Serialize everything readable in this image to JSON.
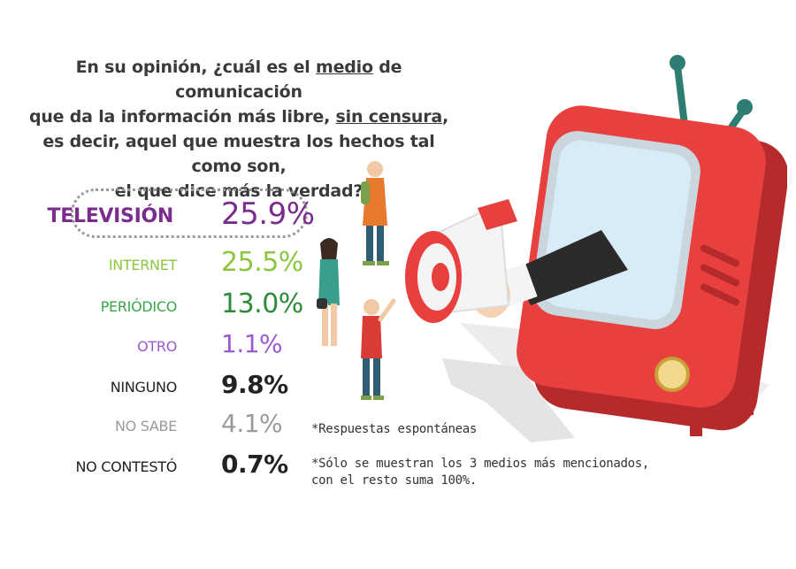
{
  "question": {
    "line1_pre": "En su opinión, ¿cuál es el ",
    "line1_u": "medio",
    "line1_post": " de comunicación",
    "line2_pre": "que da la información más libre, ",
    "line2_u": "sin censura",
    "line2_post": ",",
    "line3": "es decir, aquel que muestra los hechos tal como son,",
    "line4": "el que dice más la verdad?"
  },
  "chart_data": {
    "type": "table",
    "rows": [
      {
        "label": "TELEVISIÓN",
        "value": 25.9,
        "display": "25.9%",
        "label_color": "#7b2d8e",
        "value_color": "#7b2d8e"
      },
      {
        "label": "INTERNET",
        "value": 25.5,
        "display": "25.5%",
        "label_color": "#8cc63f",
        "value_color": "#8cc63f"
      },
      {
        "label": "PERIÓDICO",
        "value": 13.0,
        "display": "13.0%",
        "label_color": "#3aa64a",
        "value_color": "#2e8b3a"
      },
      {
        "label": "OTRO",
        "value": 1.1,
        "display": "1.1%",
        "label_color": "#9b59d0",
        "value_color": "#9b59d0"
      },
      {
        "label": "NINGUNO",
        "value": 9.8,
        "display": "9.8%",
        "label_color": "#222222",
        "value_color": "#222222"
      },
      {
        "label": "NO SABE",
        "value": 4.1,
        "display": "4.1%",
        "label_color": "#9a9a9a",
        "value_color": "#9a9a9a"
      },
      {
        "label": "NO CONTESTÓ",
        "value": 0.7,
        "display": "0.7%",
        "label_color": "#222222",
        "value_color": "#222222"
      }
    ]
  },
  "notes": {
    "note1": "*Respuestas espontáneas",
    "note2_line1": "*Sólo se muestran los 3 medios más mencionados,",
    "note2_line2": "con el resto suma 100%."
  },
  "colors": {
    "tv_red": "#e8403f",
    "tv_dark_red": "#b62a2c",
    "screen": "#d8ecf7",
    "antenna": "#2e7d73",
    "shadow": "#e6e6e6"
  }
}
